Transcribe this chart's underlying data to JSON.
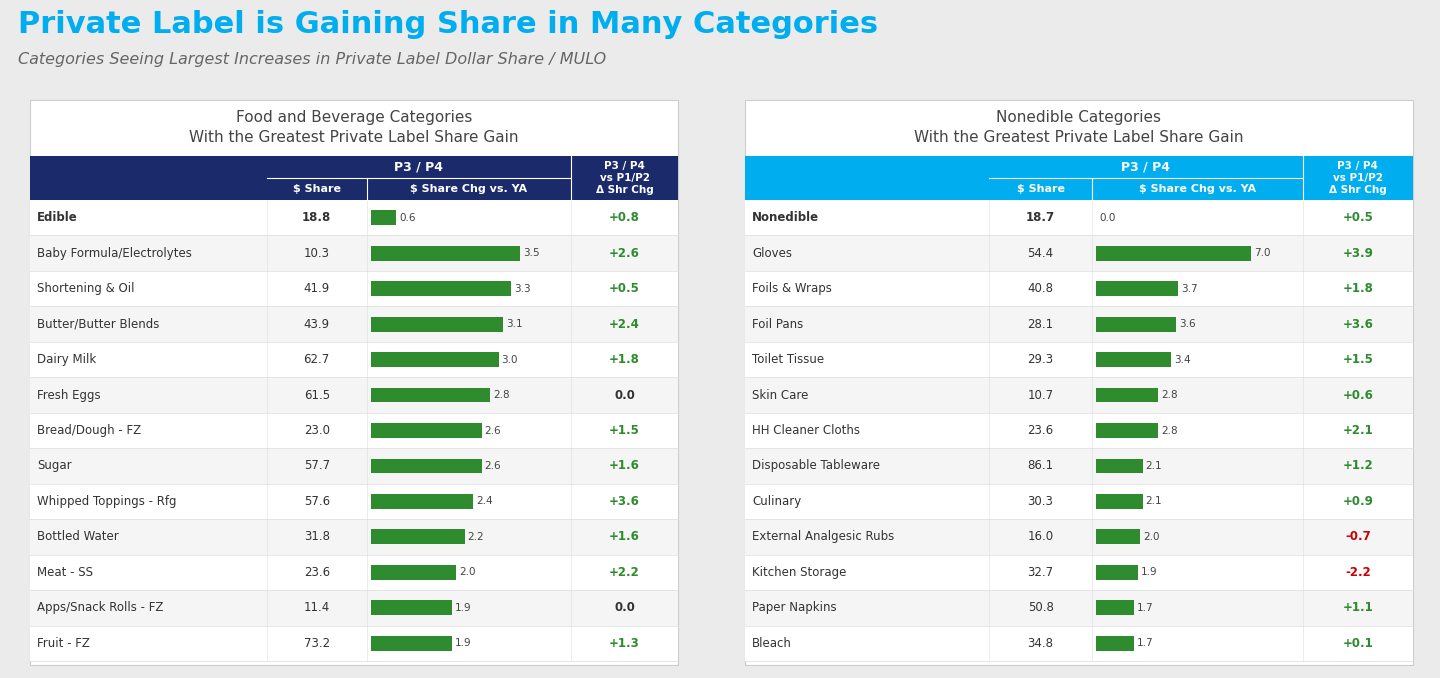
{
  "title": "Private Label is Gaining Share in Many Categories",
  "subtitle": "Categories Seeing Largest Increases in Private Label Dollar Share / MULO",
  "title_color": "#00AEEF",
  "subtitle_color": "#666666",
  "left_table_title_line1": "Food and Beverage Categories",
  "left_table_title_line2": "With the Greatest Private Label Share Gain",
  "right_table_title_line1": "Nonedible Categories",
  "right_table_title_line2": "With the Greatest Private Label Share Gain",
  "left_header_color": "#1B2A6B",
  "right_header_color": "#00AEEF",
  "bar_color": "#2E8B2E",
  "positive_color": "#2E8B2E",
  "negative_color": "#CC0000",
  "neutral_color": "#333333",
  "left_data": [
    {
      "category": "Edible",
      "share": "18.8",
      "chg": 0.6,
      "shr_chg": "+0.8",
      "bold": true
    },
    {
      "category": "Baby Formula/Electrolytes",
      "share": "10.3",
      "chg": 3.5,
      "shr_chg": "+2.6",
      "bold": false
    },
    {
      "category": "Shortening & Oil",
      "share": "41.9",
      "chg": 3.3,
      "shr_chg": "+0.5",
      "bold": false
    },
    {
      "category": "Butter/Butter Blends",
      "share": "43.9",
      "chg": 3.1,
      "shr_chg": "+2.4",
      "bold": false
    },
    {
      "category": "Dairy Milk",
      "share": "62.7",
      "chg": 3.0,
      "shr_chg": "+1.8",
      "bold": false
    },
    {
      "category": "Fresh Eggs",
      "share": "61.5",
      "chg": 2.8,
      "shr_chg": "0.0",
      "bold": false
    },
    {
      "category": "Bread/Dough - FZ",
      "share": "23.0",
      "chg": 2.6,
      "shr_chg": "+1.5",
      "bold": false
    },
    {
      "category": "Sugar",
      "share": "57.7",
      "chg": 2.6,
      "shr_chg": "+1.6",
      "bold": false
    },
    {
      "category": "Whipped Toppings - Rfg",
      "share": "57.6",
      "chg": 2.4,
      "shr_chg": "+3.6",
      "bold": false
    },
    {
      "category": "Bottled Water",
      "share": "31.8",
      "chg": 2.2,
      "shr_chg": "+1.6",
      "bold": false
    },
    {
      "category": "Meat - SS",
      "share": "23.6",
      "chg": 2.0,
      "shr_chg": "+2.2",
      "bold": false
    },
    {
      "category": "Apps/Snack Rolls - FZ",
      "share": "11.4",
      "chg": 1.9,
      "shr_chg": "0.0",
      "bold": false
    },
    {
      "category": "Fruit - FZ",
      "share": "73.2",
      "chg": 1.9,
      "shr_chg": "+1.3",
      "bold": false
    }
  ],
  "right_data": [
    {
      "category": "Nonedible",
      "share": "18.7",
      "chg": 0.0,
      "shr_chg": "+0.5",
      "bold": true
    },
    {
      "category": "Gloves",
      "share": "54.4",
      "chg": 7.0,
      "shr_chg": "+3.9",
      "bold": false
    },
    {
      "category": "Foils & Wraps",
      "share": "40.8",
      "chg": 3.7,
      "shr_chg": "+1.8",
      "bold": false
    },
    {
      "category": "Foil Pans",
      "share": "28.1",
      "chg": 3.6,
      "shr_chg": "+3.6",
      "bold": false
    },
    {
      "category": "Toilet Tissue",
      "share": "29.3",
      "chg": 3.4,
      "shr_chg": "+1.5",
      "bold": false
    },
    {
      "category": "Skin Care",
      "share": "10.7",
      "chg": 2.8,
      "shr_chg": "+0.6",
      "bold": false
    },
    {
      "category": "HH Cleaner Cloths",
      "share": "23.6",
      "chg": 2.8,
      "shr_chg": "+2.1",
      "bold": false
    },
    {
      "category": "Disposable Tableware",
      "share": "86.1",
      "chg": 2.1,
      "shr_chg": "+1.2",
      "bold": false
    },
    {
      "category": "Culinary",
      "share": "30.3",
      "chg": 2.1,
      "shr_chg": "+0.9",
      "bold": false
    },
    {
      "category": "External Analgesic Rubs",
      "share": "16.0",
      "chg": 2.0,
      "shr_chg": "-0.7",
      "bold": false
    },
    {
      "category": "Kitchen Storage",
      "share": "32.7",
      "chg": 1.9,
      "shr_chg": "-2.2",
      "bold": false
    },
    {
      "category": "Paper Napkins",
      "share": "50.8",
      "chg": 1.7,
      "shr_chg": "+1.1",
      "bold": false
    },
    {
      "category": "Bleach",
      "share": "34.8",
      "chg": 1.7,
      "shr_chg": "+0.1",
      "bold": false
    }
  ],
  "bg_color": "#EBEBEB",
  "panel_color": "#FFFFFF",
  "row_even_color": "#FFFFFF",
  "row_odd_color": "#F5F5F5",
  "divider_color": "#DDDDDD",
  "header_divider_color": "#FFFFFF"
}
